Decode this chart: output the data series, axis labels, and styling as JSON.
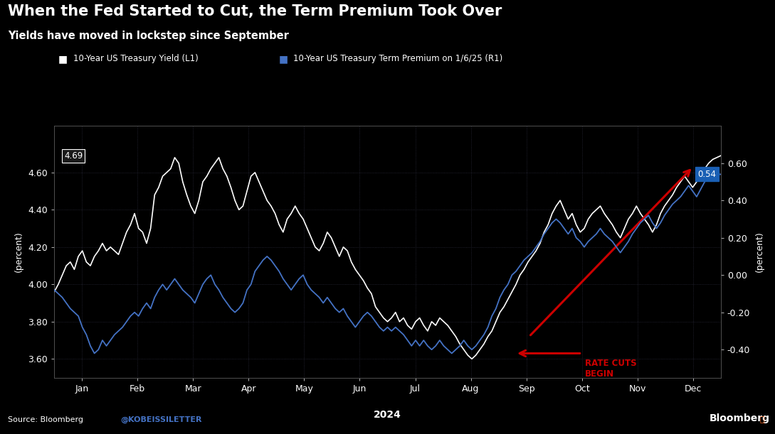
{
  "title": "When the Fed Started to Cut, the Term Premium Took Over",
  "subtitle": "Yields have moved in lockstep since September",
  "legend1": "10-Year US Treasury Yield (L1)",
  "legend2": "10-Year US Treasury Term Premium on 1/6/25 (R1)",
  "xlabel": "2024",
  "ylabel_left": "(percent)",
  "ylabel_right": "(percent)",
  "ylim_left": [
    3.5,
    4.85
  ],
  "ylim_right": [
    -0.55,
    0.8
  ],
  "yticks_left": [
    3.6,
    3.8,
    4.0,
    4.2,
    4.4,
    4.6
  ],
  "yticks_right": [
    -0.4,
    -0.2,
    0.0,
    0.2,
    0.4,
    0.6
  ],
  "background_color": "#000000",
  "line1_color": "#ffffff",
  "line2_color": "#4472c4",
  "arrow_color": "#cc0000",
  "source_text": "Source: Bloomberg",
  "handle_text": "@KOBEISSILETTER",
  "bloomberg_text": "Bloomberg",
  "months": [
    "Jan",
    "Feb",
    "Mar",
    "Apr",
    "May",
    "Jun",
    "Jul",
    "Aug",
    "Sep",
    "Oct",
    "Nov",
    "Dec"
  ],
  "treasury_yield": [
    3.96,
    4.0,
    4.05,
    4.1,
    4.12,
    4.08,
    4.15,
    4.18,
    4.12,
    4.1,
    4.15,
    4.18,
    4.22,
    4.18,
    4.2,
    4.18,
    4.16,
    4.22,
    4.28,
    4.32,
    4.38,
    4.3,
    4.28,
    4.22,
    4.3,
    4.48,
    4.52,
    4.58,
    4.6,
    4.62,
    4.68,
    4.65,
    4.55,
    4.48,
    4.42,
    4.38,
    4.45,
    4.55,
    4.58,
    4.62,
    4.65,
    4.68,
    4.62,
    4.58,
    4.52,
    4.45,
    4.4,
    4.42,
    4.5,
    4.58,
    4.6,
    4.55,
    4.5,
    4.45,
    4.42,
    4.38,
    4.32,
    4.28,
    4.35,
    4.38,
    4.42,
    4.38,
    4.35,
    4.3,
    4.25,
    4.2,
    4.18,
    4.22,
    4.28,
    4.25,
    4.2,
    4.15,
    4.2,
    4.18,
    4.12,
    4.08,
    4.05,
    4.02,
    3.98,
    3.95,
    3.88,
    3.85,
    3.82,
    3.8,
    3.82,
    3.85,
    3.8,
    3.82,
    3.78,
    3.76,
    3.8,
    3.82,
    3.78,
    3.75,
    3.8,
    3.78,
    3.82,
    3.8,
    3.78,
    3.75,
    3.72,
    3.68,
    3.65,
    3.62,
    3.6,
    3.62,
    3.65,
    3.68,
    3.72,
    3.75,
    3.8,
    3.85,
    3.88,
    3.92,
    3.96,
    4.0,
    4.05,
    4.08,
    4.12,
    4.15,
    4.18,
    4.22,
    4.28,
    4.32,
    4.38,
    4.42,
    4.45,
    4.4,
    4.35,
    4.38,
    4.32,
    4.28,
    4.3,
    4.35,
    4.38,
    4.4,
    4.42,
    4.38,
    4.35,
    4.32,
    4.28,
    4.25,
    4.3,
    4.35,
    4.38,
    4.42,
    4.38,
    4.35,
    4.32,
    4.28,
    4.32,
    4.38,
    4.42,
    4.45,
    4.48,
    4.52,
    4.55,
    4.58,
    4.55,
    4.52,
    4.55,
    4.6,
    4.62,
    4.65,
    4.67,
    4.68,
    4.69
  ],
  "term_premium": [
    -0.08,
    -0.1,
    -0.12,
    -0.15,
    -0.18,
    -0.2,
    -0.22,
    -0.28,
    -0.32,
    -0.38,
    -0.42,
    -0.4,
    -0.35,
    -0.38,
    -0.35,
    -0.32,
    -0.3,
    -0.28,
    -0.25,
    -0.22,
    -0.2,
    -0.22,
    -0.18,
    -0.15,
    -0.18,
    -0.12,
    -0.08,
    -0.05,
    -0.08,
    -0.05,
    -0.02,
    -0.05,
    -0.08,
    -0.1,
    -0.12,
    -0.15,
    -0.1,
    -0.05,
    -0.02,
    0.0,
    -0.05,
    -0.08,
    -0.12,
    -0.15,
    -0.18,
    -0.2,
    -0.18,
    -0.15,
    -0.08,
    -0.05,
    0.02,
    0.05,
    0.08,
    0.1,
    0.08,
    0.05,
    0.02,
    -0.02,
    -0.05,
    -0.08,
    -0.05,
    -0.02,
    0.0,
    -0.05,
    -0.08,
    -0.1,
    -0.12,
    -0.15,
    -0.12,
    -0.15,
    -0.18,
    -0.2,
    -0.18,
    -0.22,
    -0.25,
    -0.28,
    -0.25,
    -0.22,
    -0.2,
    -0.22,
    -0.25,
    -0.28,
    -0.3,
    -0.28,
    -0.3,
    -0.28,
    -0.3,
    -0.32,
    -0.35,
    -0.38,
    -0.35,
    -0.38,
    -0.35,
    -0.38,
    -0.4,
    -0.38,
    -0.35,
    -0.38,
    -0.4,
    -0.42,
    -0.4,
    -0.38,
    -0.35,
    -0.38,
    -0.4,
    -0.38,
    -0.35,
    -0.32,
    -0.28,
    -0.22,
    -0.18,
    -0.12,
    -0.08,
    -0.05,
    0.0,
    0.02,
    0.05,
    0.08,
    0.1,
    0.12,
    0.15,
    0.18,
    0.22,
    0.25,
    0.28,
    0.3,
    0.28,
    0.25,
    0.22,
    0.25,
    0.2,
    0.18,
    0.15,
    0.18,
    0.2,
    0.22,
    0.25,
    0.22,
    0.2,
    0.18,
    0.15,
    0.12,
    0.15,
    0.18,
    0.22,
    0.25,
    0.28,
    0.3,
    0.32,
    0.28,
    0.25,
    0.28,
    0.32,
    0.35,
    0.38,
    0.4,
    0.42,
    0.45,
    0.48,
    0.45,
    0.42,
    0.46,
    0.5,
    0.52,
    0.53,
    0.54,
    0.54
  ]
}
